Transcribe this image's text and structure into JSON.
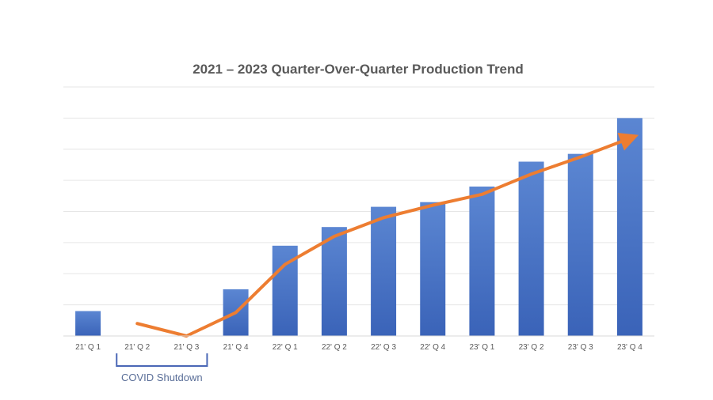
{
  "chart_data": {
    "type": "bar",
    "title": "2021 – 2023 Quarter-Over-Quarter Production Trend",
    "xlabel": "",
    "ylabel": "",
    "categories": [
      "21' Q 1",
      "21' Q 2",
      "21' Q 3",
      "21' Q 4",
      "22' Q 1",
      "22' Q 2",
      "22' Q 3",
      "22' Q 4",
      "23' Q 1",
      "23' Q 2",
      "23' Q 3",
      "23' Q 4"
    ],
    "series": [
      {
        "type": "bar",
        "values": [
          0.8,
          0,
          0,
          1.5,
          2.9,
          3.5,
          4.15,
          4.3,
          4.8,
          5.6,
          5.85,
          7.0
        ]
      },
      {
        "type": "line",
        "values": [
          null,
          0.4,
          0.0,
          0.75,
          2.3,
          3.2,
          3.8,
          4.2,
          4.55,
          5.2,
          5.75,
          6.35
        ]
      }
    ],
    "ylim": [
      0,
      8
    ],
    "grid": true,
    "legend": "none",
    "bar_color": "#4472c4",
    "line_color": "#ed7d31",
    "annotation": {
      "text": "COVID Shutdown",
      "from": "21' Q 2",
      "to": "21' Q 3"
    }
  }
}
